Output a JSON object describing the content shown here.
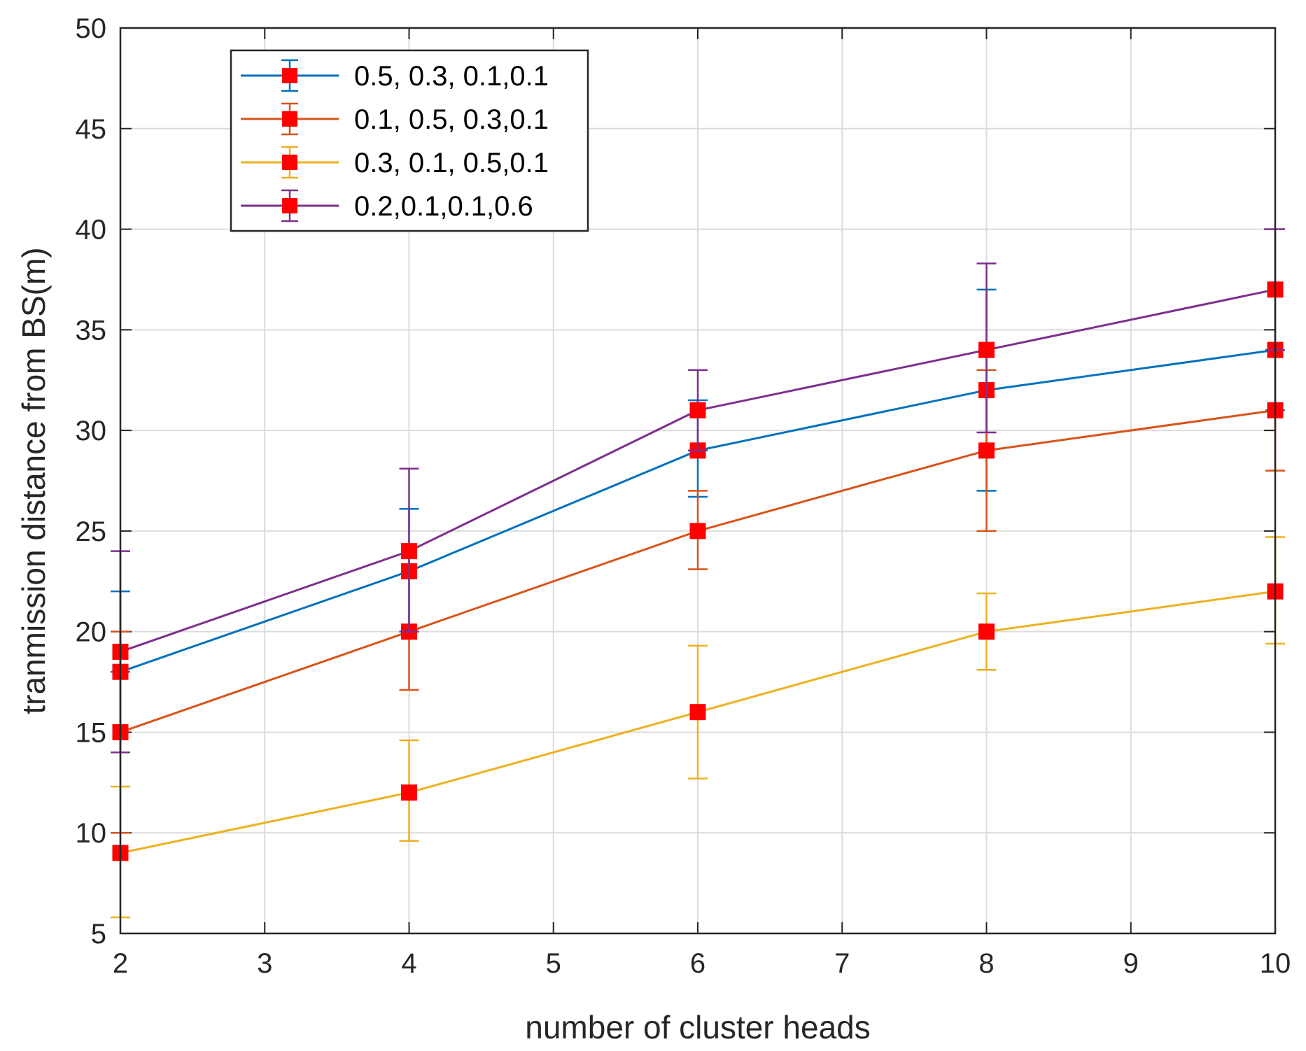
{
  "chart_data": {
    "type": "line",
    "title": "",
    "xlabel": "number of cluster heads",
    "ylabel": "tranmission distance from BS(m)",
    "xlim": [
      2,
      10
    ],
    "ylim": [
      5,
      50
    ],
    "xticks": [
      2,
      3,
      4,
      5,
      6,
      7,
      8,
      9,
      10
    ],
    "yticks": [
      5,
      10,
      15,
      20,
      25,
      30,
      35,
      40,
      45,
      50
    ],
    "grid": true,
    "legend_position": "top-left",
    "marker": "square",
    "marker_color": "#ff0000",
    "x": [
      2,
      4,
      6,
      8,
      10
    ],
    "series": [
      {
        "name": "0.5, 0.3, 0.1,0.1",
        "color": "#0072bd",
        "values": [
          18,
          23,
          29,
          32,
          34
        ],
        "err_low": [
          18,
          20,
          26.7,
          27,
          31
        ],
        "err_high": [
          22,
          26.1,
          31.5,
          37,
          34
        ]
      },
      {
        "name": "0.1, 0.5, 0.3,0.1",
        "color": "#d95319",
        "values": [
          15,
          20,
          25,
          29,
          31
        ],
        "err_low": [
          10,
          17.1,
          23.1,
          25,
          28
        ],
        "err_high": [
          20,
          20,
          27,
          33,
          34
        ]
      },
      {
        "name": "0.3, 0.1, 0.5,0.1",
        "color": "#edb120",
        "values": [
          9,
          12,
          16,
          20,
          22
        ],
        "err_low": [
          5.8,
          9.6,
          12.7,
          18.1,
          19.4
        ],
        "err_high": [
          12.3,
          14.6,
          19.3,
          21.9,
          24.7
        ]
      },
      {
        "name": "0.2,0.1,0.1,0.6",
        "color": "#7e2f8e",
        "values": [
          19,
          24,
          31,
          34,
          37
        ],
        "err_low": [
          14,
          20,
          29,
          29.9,
          34
        ],
        "err_high": [
          24,
          28.1,
          33,
          38.3,
          40
        ]
      }
    ]
  }
}
